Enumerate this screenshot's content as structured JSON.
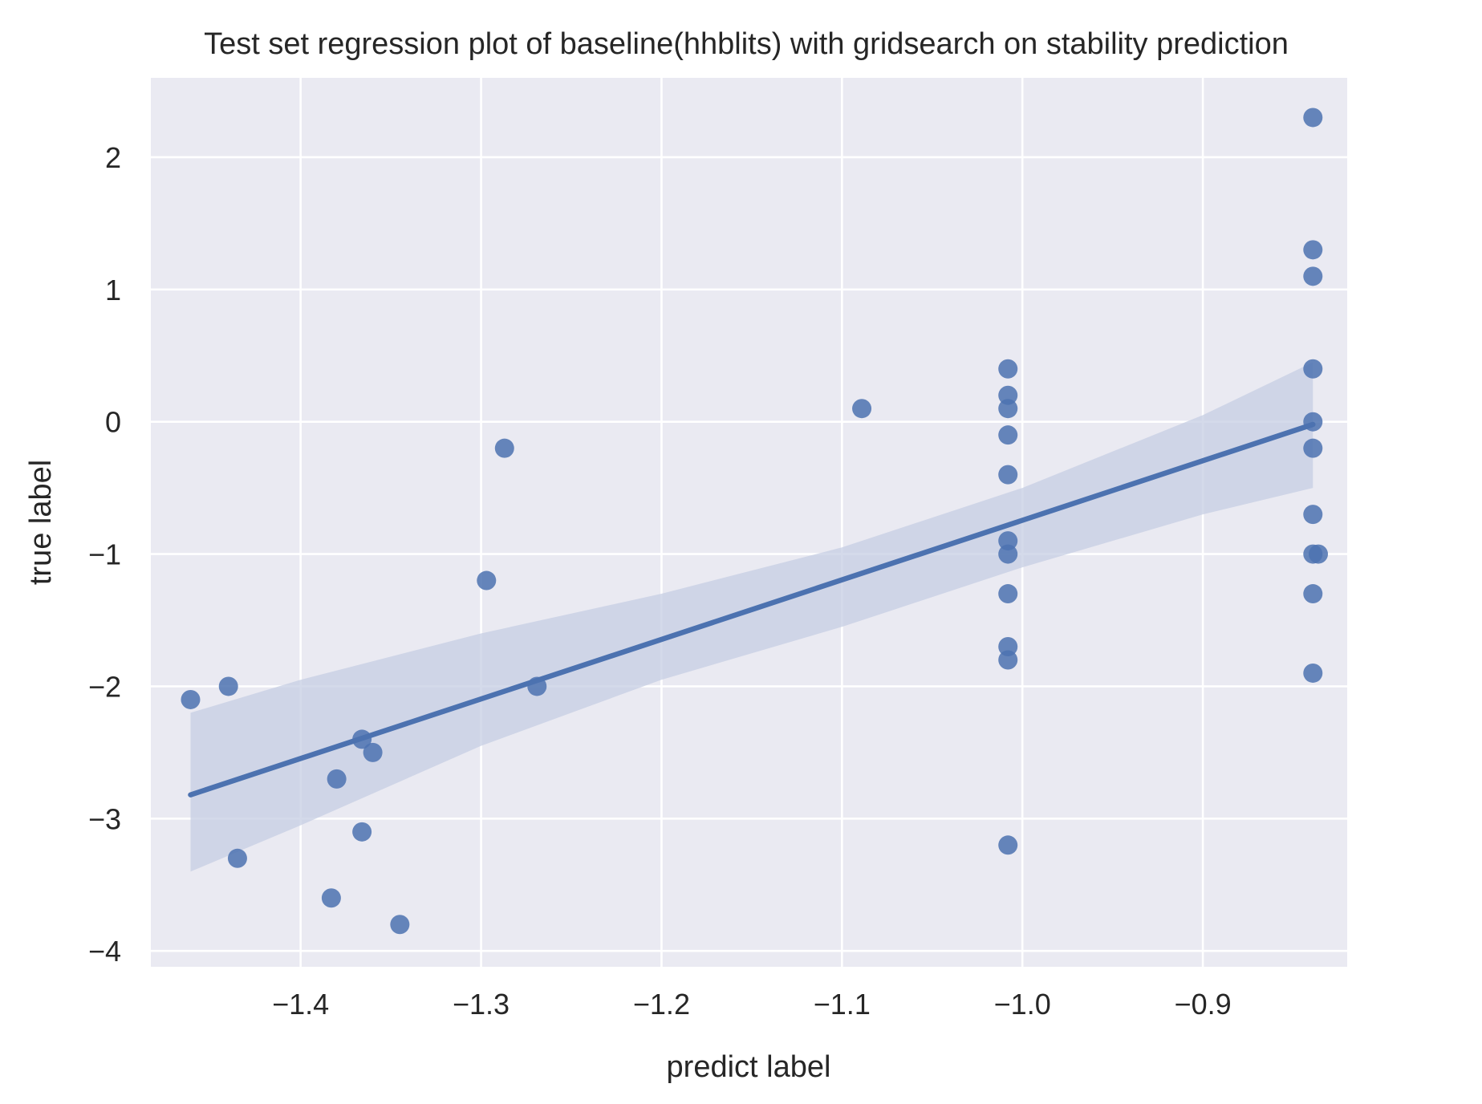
{
  "chart_data": {
    "type": "scatter",
    "title": "Test set regression plot of baseline(hhblits) with gridsearch on stability prediction",
    "xlabel": "predict label",
    "ylabel": "true label",
    "xlim": [
      -1.483,
      -0.82
    ],
    "ylim": [
      -4.12,
      2.6
    ],
    "x_ticks": [
      -1.4,
      -1.3,
      -1.2,
      -1.1,
      -1.0,
      -0.9
    ],
    "x_tick_labels": [
      "−1.4",
      "−1.3",
      "−1.2",
      "−1.1",
      "−1.0",
      "−0.9"
    ],
    "y_ticks": [
      -4,
      -3,
      -2,
      -1,
      0,
      1,
      2
    ],
    "y_tick_labels": [
      "−4",
      "−3",
      "−2",
      "−1",
      "0",
      "1",
      "2"
    ],
    "grid": true,
    "colors": {
      "background": "#eaeaf2",
      "grid": "#ffffff",
      "points": "#4c72b0",
      "line": "#4c72b0",
      "band": "#c5cde3"
    },
    "points": [
      {
        "x": -1.461,
        "y": -2.1
      },
      {
        "x": -1.44,
        "y": -2.0
      },
      {
        "x": -1.435,
        "y": -3.3
      },
      {
        "x": -1.383,
        "y": -3.6
      },
      {
        "x": -1.38,
        "y": -2.7
      },
      {
        "x": -1.366,
        "y": -2.4
      },
      {
        "x": -1.366,
        "y": -3.1
      },
      {
        "x": -1.36,
        "y": -2.5
      },
      {
        "x": -1.345,
        "y": -3.8
      },
      {
        "x": -1.297,
        "y": -1.2
      },
      {
        "x": -1.287,
        "y": -0.2
      },
      {
        "x": -1.269,
        "y": -2.0
      },
      {
        "x": -1.089,
        "y": 0.1
      },
      {
        "x": -1.008,
        "y": 0.4
      },
      {
        "x": -1.008,
        "y": 0.2
      },
      {
        "x": -1.008,
        "y": 0.1
      },
      {
        "x": -1.008,
        "y": -0.1
      },
      {
        "x": -1.008,
        "y": -0.4
      },
      {
        "x": -1.008,
        "y": -0.9
      },
      {
        "x": -1.008,
        "y": -1.0
      },
      {
        "x": -1.008,
        "y": -1.3
      },
      {
        "x": -1.008,
        "y": -1.7
      },
      {
        "x": -1.008,
        "y": -1.8
      },
      {
        "x": -1.008,
        "y": -3.2
      },
      {
        "x": -0.839,
        "y": 2.3
      },
      {
        "x": -0.839,
        "y": 1.3
      },
      {
        "x": -0.839,
        "y": 1.1
      },
      {
        "x": -0.839,
        "y": 0.4
      },
      {
        "x": -0.839,
        "y": 0.0
      },
      {
        "x": -0.839,
        "y": -0.2
      },
      {
        "x": -0.839,
        "y": -0.7
      },
      {
        "x": -0.839,
        "y": -1.0
      },
      {
        "x": -0.836,
        "y": -1.0
      },
      {
        "x": -0.839,
        "y": -1.3
      },
      {
        "x": -0.839,
        "y": -1.9
      }
    ],
    "regression_line": {
      "x": [
        -1.461,
        -0.839
      ],
      "y": [
        -2.82,
        -0.02
      ]
    },
    "confidence_band": {
      "x": [
        -1.461,
        -1.4,
        -1.3,
        -1.2,
        -1.1,
        -1.0,
        -0.9,
        -0.839
      ],
      "upper": [
        -2.2,
        -1.95,
        -1.6,
        -1.3,
        -0.95,
        -0.5,
        0.05,
        0.45
      ],
      "lower": [
        -3.4,
        -3.05,
        -2.45,
        -1.95,
        -1.55,
        -1.1,
        -0.7,
        -0.5
      ]
    }
  }
}
